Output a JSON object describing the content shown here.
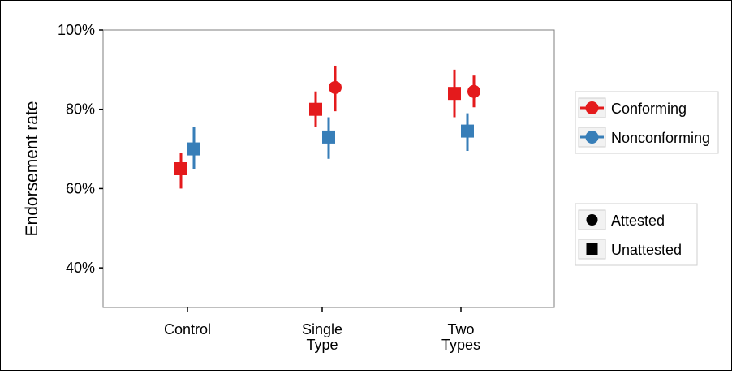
{
  "chart_data": {
    "type": "scatter",
    "ylabel": "Endorsement rate",
    "xlabel": "",
    "ylim": [
      0.3,
      1.0
    ],
    "yticks": [
      0.4,
      0.6,
      0.8,
      1.0
    ],
    "ytick_labels": [
      "40%",
      "60%",
      "80%",
      "100%"
    ],
    "categories": [
      "Control",
      "Single Type",
      "Two Types"
    ],
    "category_labels": [
      [
        "Control"
      ],
      [
        "Single",
        "Type"
      ],
      [
        "Two",
        "Types"
      ]
    ],
    "grid": false,
    "legend_position": "right",
    "legend_color": [
      {
        "label": "Conforming",
        "color": "#e41a1c"
      },
      {
        "label": "Nonconforming",
        "color": "#377eb8"
      }
    ],
    "legend_shape": [
      {
        "label": "Attested",
        "shape": "circle"
      },
      {
        "label": "Unattested",
        "shape": "square"
      }
    ],
    "points": [
      {
        "category": "Control",
        "color": "Conforming",
        "shape": "Unattested",
        "y": 0.65,
        "lo": 0.6,
        "hi": 0.69
      },
      {
        "category": "Control",
        "color": "Nonconforming",
        "shape": "Unattested",
        "y": 0.7,
        "lo": 0.65,
        "hi": 0.755
      },
      {
        "category": "Single Type",
        "color": "Conforming",
        "shape": "Unattested",
        "y": 0.8,
        "lo": 0.755,
        "hi": 0.845
      },
      {
        "category": "Single Type",
        "color": "Conforming",
        "shape": "Attested",
        "y": 0.855,
        "lo": 0.795,
        "hi": 0.91
      },
      {
        "category": "Single Type",
        "color": "Nonconforming",
        "shape": "Unattested",
        "y": 0.73,
        "lo": 0.675,
        "hi": 0.78
      },
      {
        "category": "Two Types",
        "color": "Conforming",
        "shape": "Unattested",
        "y": 0.84,
        "lo": 0.78,
        "hi": 0.9
      },
      {
        "category": "Two Types",
        "color": "Conforming",
        "shape": "Attested",
        "y": 0.845,
        "lo": 0.805,
        "hi": 0.885
      },
      {
        "category": "Two Types",
        "color": "Nonconforming",
        "shape": "Unattested",
        "y": 0.745,
        "lo": 0.695,
        "hi": 0.79
      }
    ]
  }
}
